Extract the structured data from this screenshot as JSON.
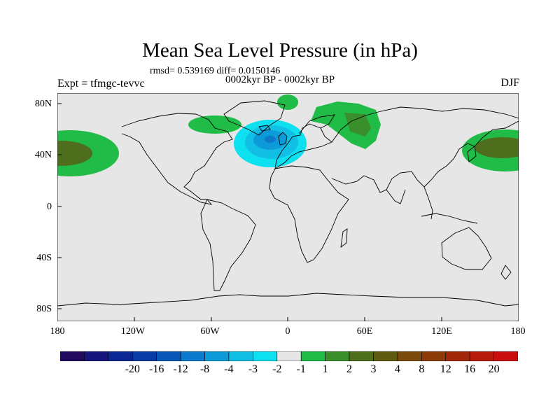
{
  "title": "Mean Sea Level Pressure (in hPa)",
  "stats": "rmsd= 0.539169 diff= 0.0150146",
  "case_label": "0002kyr BP - 0002kyr BP",
  "experiment": "Expt = tfmgc-tevvc",
  "season": "DJF",
  "lat_labels": [
    "80N",
    "40N",
    "0",
    "40S",
    "80S"
  ],
  "lon_labels": [
    "180",
    "120W",
    "60W",
    "0",
    "60E",
    "120E",
    "180"
  ],
  "colorbar": {
    "labels": [
      "-20",
      "-16",
      "-12",
      "-8",
      "-4",
      "-3",
      "-2",
      "-1",
      "1",
      "2",
      "3",
      "4",
      "8",
      "12",
      "16",
      "20"
    ],
    "colors": [
      "#210a5e",
      "#15157d",
      "#0b2794",
      "#0a3aa3",
      "#0a55b8",
      "#0d79cc",
      "#0d9ad8",
      "#11bfe5",
      "#0de0ee",
      "#e6e6e6",
      "#21bc48",
      "#3a8f2c",
      "#4e6e1d",
      "#5e5a12",
      "#7a4a0d",
      "#8c3a08",
      "#a2270a",
      "#b51a0c",
      "#c80e0e"
    ]
  },
  "colors": {
    "land_background": "#e6e6e6",
    "coast": "#000000",
    "positive_1": "#21bc48",
    "positive_2": "#3a8f2c",
    "positive_3": "#4e6e1d",
    "negative_1": "#0de0ee",
    "negative_2": "#11bfe5",
    "negative_3": "#0d9ad8",
    "negative_4": "#0d79cc"
  }
}
